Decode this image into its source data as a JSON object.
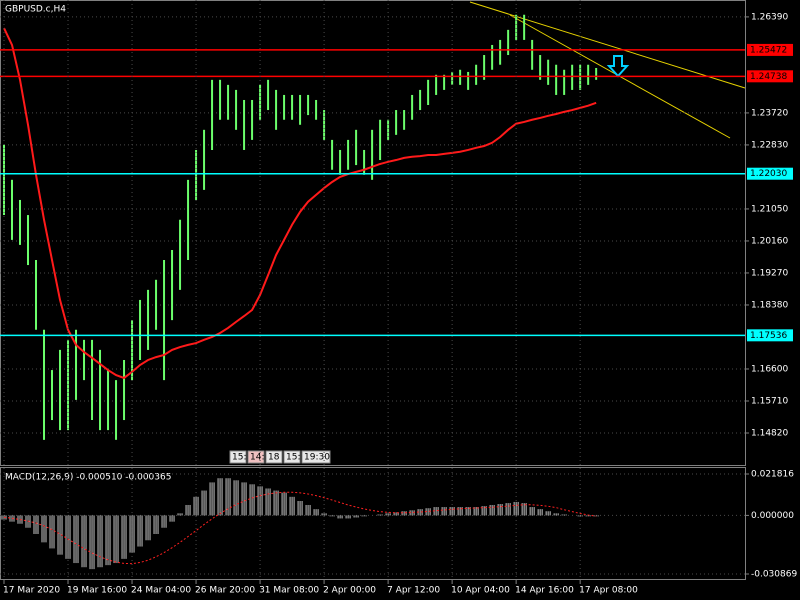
{
  "chart_data": [
    {
      "type": "candlestick",
      "title": "GBPUSD.c,H4",
      "color": "#6cff6c",
      "ma_color": "#ff1a1a",
      "xlim": [
        -0.5,
        92.6
      ],
      "ylim": [
        1.1393,
        1.2686
      ],
      "grid": true,
      "yticks": [
        {
          "value": 1.2639,
          "label": "1.26390"
        },
        {
          "value": 1.2372,
          "label": "1.23720"
        },
        {
          "value": 1.2283,
          "label": "1.22830"
        },
        {
          "value": 1.2105,
          "label": "1.21050"
        },
        {
          "value": 1.2016,
          "label": "1.20160"
        },
        {
          "value": 1.1927,
          "label": "1.19270"
        },
        {
          "value": 1.1838,
          "label": "1.18380"
        },
        {
          "value": 1.166,
          "label": "1.16600"
        },
        {
          "value": 1.1571,
          "label": "1.15710"
        },
        {
          "value": 1.1482,
          "label": "1.14820"
        }
      ],
      "levels": [
        {
          "value": 1.25472,
          "label": "1.25472",
          "color": "#ff0000"
        },
        {
          "value": 1.24738,
          "label": "1.24738",
          "color": "#ff0000"
        },
        {
          "value": 1.2203,
          "label": "1.22030",
          "color": "#00ffff"
        },
        {
          "value": 1.17536,
          "label": "1.17536",
          "color": "#00ffff"
        }
      ],
      "annotations": [
        "15:",
        "14:",
        "18",
        "15:",
        "19:30"
      ],
      "high": [
        1.2283,
        1.2186,
        1.213,
        1.2088,
        1.1963,
        1.1769,
        1.1657,
        1.1713,
        1.1741,
        1.1769,
        1.1741,
        1.1741,
        1.1713,
        1.1657,
        1.1629,
        1.1685,
        1.1796,
        1.1852,
        1.188,
        1.1908,
        1.1963,
        1.1991,
        1.2075,
        1.2186,
        1.2269,
        1.2325,
        1.2464,
        1.2464,
        1.245,
        1.2436,
        1.2408,
        1.2408,
        1.245,
        1.2464,
        1.2436,
        1.2422,
        1.2422,
        1.2422,
        1.2422,
        1.2408,
        1.238,
        1.2297,
        1.2269,
        1.2297,
        1.2325,
        1.2269,
        1.2325,
        1.2353,
        1.2353,
        1.238,
        1.238,
        1.2422,
        1.2436,
        1.2464,
        1.2478,
        1.2478,
        1.2486,
        1.2492,
        1.2486,
        1.2506,
        1.2533,
        1.2561,
        1.2575,
        1.2603,
        1.2645,
        1.2645,
        1.2575,
        1.2533,
        1.252,
        1.2506,
        1.2492,
        1.2506,
        1.2506,
        1.2506,
        1.2497
      ],
      "low": [
        1.2088,
        1.2019,
        1.2005,
        1.1949,
        1.1769,
        1.1463,
        1.1518,
        1.149,
        1.149,
        1.1574,
        1.1629,
        1.1518,
        1.149,
        1.149,
        1.1463,
        1.1518,
        1.1629,
        1.1685,
        1.1713,
        1.1769,
        1.1629,
        1.1796,
        1.188,
        1.1963,
        1.213,
        1.2158,
        1.2269,
        1.2353,
        1.2353,
        1.2325,
        1.2269,
        1.2297,
        1.2353,
        1.238,
        1.2325,
        1.2353,
        1.2353,
        1.2339,
        1.2366,
        1.2353,
        1.2297,
        1.2214,
        1.22,
        1.2214,
        1.2227,
        1.22,
        1.2186,
        1.2241,
        1.2297,
        1.2311,
        1.2325,
        1.2353,
        1.238,
        1.2394,
        1.2422,
        1.2436,
        1.245,
        1.245,
        1.2436,
        1.245,
        1.2464,
        1.2492,
        1.2506,
        1.2533,
        1.2575,
        1.2575,
        1.2492,
        1.2464,
        1.245,
        1.2422,
        1.2422,
        1.2436,
        1.2436,
        1.245,
        1.2464
      ],
      "ma": [
        1.2608,
        1.2561,
        1.2464,
        1.2339,
        1.22,
        1.2075,
        1.1963,
        1.1852,
        1.1769,
        1.1727,
        1.1707,
        1.1691,
        1.1674,
        1.1657,
        1.1643,
        1.1635,
        1.1652,
        1.1671,
        1.1685,
        1.1693,
        1.1699,
        1.1713,
        1.1721,
        1.1727,
        1.1732,
        1.1741,
        1.1749,
        1.176,
        1.1774,
        1.1791,
        1.1807,
        1.1824,
        1.1866,
        1.1921,
        1.1977,
        1.2019,
        1.2061,
        1.2097,
        1.2125,
        1.2144,
        1.2163,
        1.218,
        1.2194,
        1.2202,
        1.2208,
        1.2214,
        1.2222,
        1.223,
        1.2236,
        1.2241,
        1.2247,
        1.225,
        1.2252,
        1.2255,
        1.2255,
        1.2258,
        1.2261,
        1.2264,
        1.2269,
        1.2275,
        1.228,
        1.2289,
        1.2305,
        1.2325,
        1.2342,
        1.2347,
        1.2353,
        1.2358,
        1.2364,
        1.2369,
        1.2375,
        1.238,
        1.2386,
        1.2392,
        1.24
      ]
    },
    {
      "type": "macd",
      "title": "MACD(12,26,9) -0.000510 -0.000365",
      "color": "#c8c8c8",
      "signal_color": "#ff2020",
      "xlim": [
        -0.5,
        92.6
      ],
      "ylim": [
        -0.03403,
        0.02498
      ],
      "grid": true,
      "yticks": [
        0.021816,
        {
          "value": 0,
          "label": "0.000000"
        },
        -0.030869
      ],
      "xticks": [
        {
          "value": 0,
          "label": "17 Mar 2020"
        },
        {
          "value": 8,
          "label": "19 Mar 16:00"
        },
        {
          "value": 16,
          "label": "24 Mar 04:00"
        },
        {
          "value": 24,
          "label": "26 Mar 20:00"
        },
        {
          "value": 32,
          "label": "31 Mar 08:00"
        },
        {
          "value": 40,
          "label": "2 Apr 00:00"
        },
        {
          "value": 48,
          "label": "7 Apr 12:00"
        },
        {
          "value": 56,
          "label": "10 Apr 04:00"
        },
        {
          "value": 64,
          "label": "14 Apr 16:00"
        },
        {
          "value": 72,
          "label": "17 Apr 08:00"
        }
      ],
      "values": [
        -0.0022,
        -0.0033,
        -0.0044,
        -0.0065,
        -0.0098,
        -0.0142,
        -0.0174,
        -0.0207,
        -0.0229,
        -0.0251,
        -0.0273,
        -0.0283,
        -0.0273,
        -0.0262,
        -0.0251,
        -0.0229,
        -0.0196,
        -0.0164,
        -0.0131,
        -0.0098,
        -0.0065,
        -0.0033,
        0.0011,
        0.0055,
        0.0098,
        0.0131,
        0.0174,
        0.0196,
        0.0196,
        0.0185,
        0.0174,
        0.0164,
        0.0153,
        0.0142,
        0.0131,
        0.012,
        0.0098,
        0.0076,
        0.0055,
        0.0033,
        0.0011,
        -0.0005,
        -0.0016,
        -0.0016,
        -0.0011,
        -0.0005,
        0,
        0.0005,
        0.0011,
        0.0016,
        0.0022,
        0.0027,
        0.0033,
        0.0038,
        0.0044,
        0.0044,
        0.0044,
        0.0044,
        0.0044,
        0.0044,
        0.0049,
        0.0055,
        0.006,
        0.0065,
        0.0071,
        0.0065,
        0.0044,
        0.0033,
        0.0022,
        0.0011,
        0.0005,
        0,
        -0.0005,
        -0.0005,
        -0.0005
      ],
      "signal": [
        -0.001,
        -0.0015,
        -0.0022,
        -0.003,
        -0.004,
        -0.0055,
        -0.0075,
        -0.0098,
        -0.0125,
        -0.015,
        -0.0175,
        -0.0198,
        -0.0218,
        -0.0234,
        -0.0246,
        -0.0253,
        -0.0254,
        -0.0248,
        -0.0236,
        -0.0218,
        -0.0196,
        -0.017,
        -0.0142,
        -0.0111,
        -0.008,
        -0.0048,
        -0.0018,
        0.001,
        0.0035,
        0.0057,
        0.0076,
        0.0092,
        0.0104,
        0.0113,
        0.0119,
        0.0122,
        0.0122,
        0.0119,
        0.0113,
        0.0104,
        0.0093,
        0.0081,
        0.0068,
        0.0055,
        0.0044,
        0.0034,
        0.0026,
        0.002,
        0.0016,
        0.0014,
        0.0014,
        0.0016,
        0.0018,
        0.0021,
        0.0025,
        0.0029,
        0.0032,
        0.0035,
        0.0037,
        0.0039,
        0.0041,
        0.0043,
        0.0046,
        0.0049,
        0.0053,
        0.0056,
        0.0056,
        0.0053,
        0.0048,
        0.0041,
        0.003,
        0.002,
        0.001,
        0.0002,
        -0.0004
      ]
    }
  ]
}
